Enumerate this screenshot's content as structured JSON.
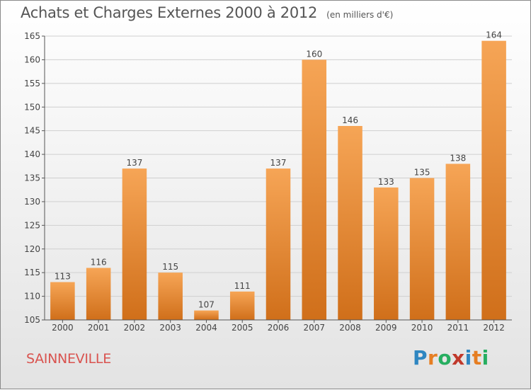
{
  "title": "Achats et Charges Externes 2000 à 2012",
  "unit_note": "(en milliers d'€)",
  "commune": "SAINNEVILLE",
  "logo": {
    "text": "Proxiti",
    "letters": [
      {
        "ch": "P",
        "color": "#2e86c1"
      },
      {
        "ch": "r",
        "color": "#e67e22"
      },
      {
        "ch": "o",
        "color": "#27ae60"
      },
      {
        "ch": "x",
        "color": "#c0392b"
      },
      {
        "ch": "i",
        "color": "#2e86c1"
      },
      {
        "ch": "t",
        "color": "#e67e22"
      },
      {
        "ch": "i",
        "color": "#27ae60"
      }
    ]
  },
  "colors": {
    "bar_light": "#f6a556",
    "bar_dark": "#d06f1a",
    "grid": "#cfcfcf",
    "axis": "#555555",
    "text": "#444444"
  },
  "chart_data": {
    "type": "bar",
    "title": "Achats et Charges Externes 2000 à 2012",
    "categories": [
      "2000",
      "2001",
      "2002",
      "2003",
      "2004",
      "2005",
      "2006",
      "2007",
      "2008",
      "2009",
      "2010",
      "2011",
      "2012"
    ],
    "values": [
      113,
      116,
      137,
      115,
      107,
      111,
      137,
      160,
      146,
      133,
      135,
      138,
      164
    ],
    "ylim": [
      105,
      165
    ],
    "yticks": [
      105,
      110,
      115,
      120,
      125,
      130,
      135,
      140,
      145,
      150,
      155,
      160,
      165
    ],
    "grid": true,
    "data_labels": true
  }
}
